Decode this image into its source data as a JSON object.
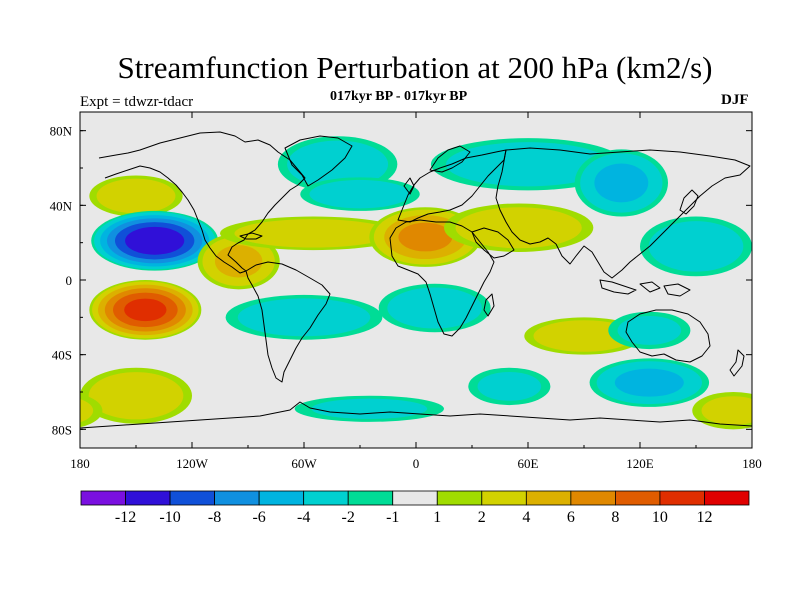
{
  "title": "Streamfunction Perturbation at 200 hPa (km2/s)",
  "subtitle": "017kyr BP - 017kyr BP",
  "left_string": "Expt = tdwzr-tdacr",
  "right_string": "DJF",
  "map": {
    "projection": "cylindrical-equidistant",
    "lon_range": [
      -180,
      180
    ],
    "lat_range": [
      -90,
      90
    ],
    "lon_ticks": [
      {
        "value": -180,
        "label": "180"
      },
      {
        "value": -120,
        "label": "120W"
      },
      {
        "value": -60,
        "label": "60W"
      },
      {
        "value": 0,
        "label": "0"
      },
      {
        "value": 60,
        "label": "60E"
      },
      {
        "value": 120,
        "label": "120E"
      },
      {
        "value": 180,
        "label": "180"
      }
    ],
    "lat_ticks": [
      {
        "value": 80,
        "label": "80N"
      },
      {
        "value": 40,
        "label": "40N"
      },
      {
        "value": 0,
        "label": "0"
      },
      {
        "value": -40,
        "label": "40S"
      },
      {
        "value": -80,
        "label": "80S"
      }
    ],
    "background_color": "#e8e8e8"
  },
  "colorbar": {
    "levels": [
      "-12",
      "-10",
      "-8",
      "-6",
      "-4",
      "-2",
      "-1",
      "1",
      "2",
      "4",
      "6",
      "8",
      "10",
      "12"
    ],
    "colors": [
      "#7a10e0",
      "#3010d8",
      "#1050d8",
      "#1090e0",
      "#00b4e0",
      "#00d0d0",
      "#00dc96",
      "#e8e8e8",
      "#a0dc00",
      "#d2d200",
      "#dcb000",
      "#e08800",
      "#e05c00",
      "#e02e00",
      "#e00000"
    ]
  },
  "anomalies": [
    {
      "lon": -150,
      "lat": 45,
      "value": 3,
      "rx": 25,
      "ry": 11
    },
    {
      "lon": -140,
      "lat": 21,
      "value": -11,
      "rx": 34,
      "ry": 16
    },
    {
      "lon": -145,
      "lat": -16,
      "value": 10,
      "rx": 30,
      "ry": 16
    },
    {
      "lon": -150,
      "lat": -62,
      "value": 3,
      "rx": 30,
      "ry": 15
    },
    {
      "lon": -42,
      "lat": 62,
      "value": -3,
      "rx": 32,
      "ry": 15
    },
    {
      "lon": -30,
      "lat": 46,
      "value": -3,
      "rx": 32,
      "ry": 9
    },
    {
      "lon": -95,
      "lat": 10,
      "value": 4,
      "rx": 22,
      "ry": 15
    },
    {
      "lon": -55,
      "lat": 25,
      "value": 3,
      "rx": 50,
      "ry": 9
    },
    {
      "lon": -60,
      "lat": -20,
      "value": -3,
      "rx": 42,
      "ry": 12
    },
    {
      "lon": 5,
      "lat": 23,
      "value": 6,
      "rx": 30,
      "ry": 16
    },
    {
      "lon": 55,
      "lat": 28,
      "value": 3,
      "rx": 40,
      "ry": 13
    },
    {
      "lon": 60,
      "lat": 62,
      "value": -3,
      "rx": 52,
      "ry": 14
    },
    {
      "lon": 110,
      "lat": 52,
      "value": -4,
      "rx": 25,
      "ry": 18
    },
    {
      "lon": 150,
      "lat": 18,
      "value": -3,
      "rx": 30,
      "ry": 16
    },
    {
      "lon": 10,
      "lat": -15,
      "value": -3,
      "rx": 30,
      "ry": 13
    },
    {
      "lon": 90,
      "lat": -30,
      "value": 3,
      "rx": 32,
      "ry": 10
    },
    {
      "lon": 125,
      "lat": -27,
      "value": -2,
      "rx": 22,
      "ry": 10
    },
    {
      "lon": 125,
      "lat": -55,
      "value": -4,
      "rx": 32,
      "ry": 13
    },
    {
      "lon": -25,
      "lat": -69,
      "value": -2,
      "rx": 40,
      "ry": 7
    },
    {
      "lon": 50,
      "lat": -57,
      "value": -2,
      "rx": 22,
      "ry": 10
    },
    {
      "lon": 170,
      "lat": -70,
      "value": 2,
      "rx": 22,
      "ry": 10
    }
  ]
}
